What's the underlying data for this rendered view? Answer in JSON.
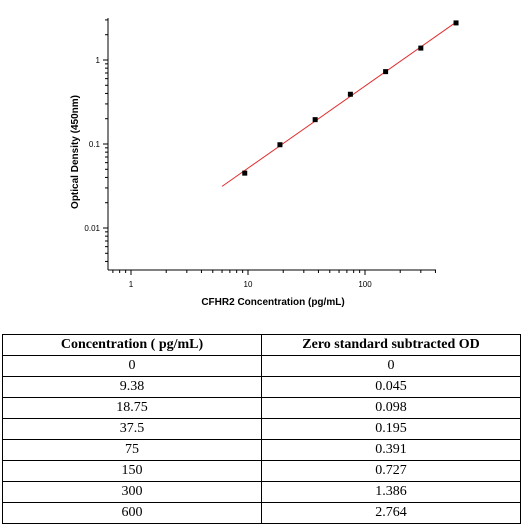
{
  "chart_data": {
    "type": "scatter",
    "title": "",
    "xlabel": "CFHR2 Concentration (pg/mL)",
    "ylabel": "Optical Density (450nm)",
    "xscale": "log",
    "yscale": "log",
    "xlim": [
      0.5,
      700
    ],
    "ylim": [
      0.004,
      3.5
    ],
    "x_ticks": [
      {
        "value": 1,
        "label": "1"
      },
      {
        "value": 10,
        "label": "10"
      },
      {
        "value": 100,
        "label": "100"
      }
    ],
    "y_ticks": [
      {
        "value": 0.01,
        "label": "0.01"
      },
      {
        "value": 0.1,
        "label": "0.1"
      },
      {
        "value": 1,
        "label": "1"
      }
    ],
    "grid": false,
    "points": [
      {
        "x": 9.38,
        "y": 0.045
      },
      {
        "x": 18.75,
        "y": 0.098
      },
      {
        "x": 37.5,
        "y": 0.195
      },
      {
        "x": 75,
        "y": 0.391
      },
      {
        "x": 150,
        "y": 0.727
      },
      {
        "x": 300,
        "y": 1.386
      },
      {
        "x": 600,
        "y": 2.764
      }
    ],
    "fit_line": {
      "color": "#e03030",
      "x_start": 6,
      "x_end": 600
    },
    "point_color": "#000000"
  },
  "table": {
    "headers": [
      "Concentration ( pg/mL)",
      "Zero standard subtracted OD"
    ],
    "rows": [
      [
        "0",
        "0"
      ],
      [
        "9.38",
        "0.045"
      ],
      [
        "18.75",
        "0.098"
      ],
      [
        "37.5",
        "0.195"
      ],
      [
        "75",
        "0.391"
      ],
      [
        "150",
        "0.727"
      ],
      [
        "300",
        "1.386"
      ],
      [
        "600",
        "2.764"
      ]
    ]
  }
}
